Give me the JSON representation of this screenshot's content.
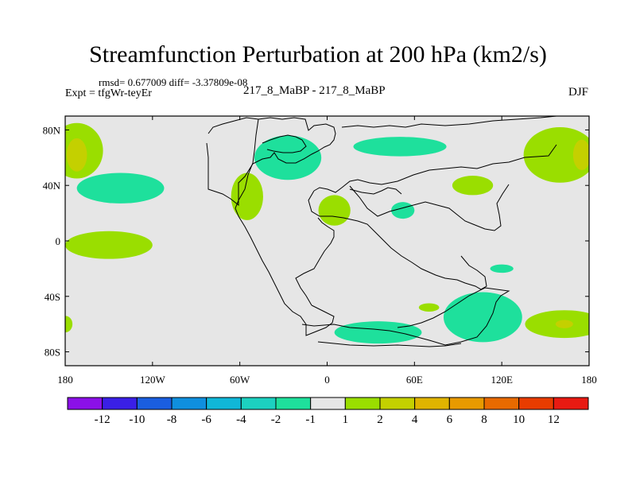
{
  "title": "Streamfunction Perturbation at 200 hPa (km2/s)",
  "subtitle_left_top": "rmsd= 0.677009 diff= -3.37809e-08",
  "subtitle_left": "Expt = tfgWr-teyEr",
  "subtitle_center": "217_8_MaBP - 217_8_MaBP",
  "subtitle_right": "DJF",
  "chart_data": {
    "type": "heatmap",
    "title": "Streamfunction Perturbation at 200 hPa (km2/s)",
    "map_projection": "cylindrical equidistant",
    "xlim": [
      -180,
      180
    ],
    "ylim": [
      -90,
      90
    ],
    "x_tick_values": [
      -180,
      -120,
      -60,
      0,
      60,
      120,
      180
    ],
    "x_tick_labels": [
      "180",
      "120W",
      "60W",
      "0",
      "60E",
      "120E",
      "180"
    ],
    "y_tick_values": [
      80,
      40,
      0,
      -40,
      -80
    ],
    "y_tick_labels": [
      "80N",
      "40N",
      "0",
      "40S",
      "80S"
    ],
    "background_value_range": [
      -1,
      1
    ],
    "features": [
      {
        "lon": -172,
        "lat": 65,
        "value": 1.5,
        "rx": 18,
        "ry": 20
      },
      {
        "lon": -172,
        "lat": 62,
        "value": 2.5,
        "rx": 7,
        "ry": 12
      },
      {
        "lon": -142,
        "lat": 38,
        "value": -1.5,
        "rx": 30,
        "ry": 11
      },
      {
        "lon": -150,
        "lat": -3,
        "value": 1.5,
        "rx": 30,
        "ry": 10
      },
      {
        "lon": -180,
        "lat": -60,
        "value": 1.5,
        "rx": 5,
        "ry": 6
      },
      {
        "lon": -55,
        "lat": 32,
        "value": 1.5,
        "rx": 11,
        "ry": 17
      },
      {
        "lon": -27,
        "lat": 60,
        "value": -1.5,
        "rx": 23,
        "ry": 16
      },
      {
        "lon": 5,
        "lat": 22,
        "value": 1.5,
        "rx": 11,
        "ry": 11
      },
      {
        "lon": 50,
        "lat": 68,
        "value": -1.5,
        "rx": 32,
        "ry": 7
      },
      {
        "lon": 52,
        "lat": 22,
        "value": -1.5,
        "rx": 8,
        "ry": 6
      },
      {
        "lon": 100,
        "lat": 40,
        "value": 1.5,
        "rx": 14,
        "ry": 7
      },
      {
        "lon": 160,
        "lat": 62,
        "value": 1.5,
        "rx": 25,
        "ry": 20
      },
      {
        "lon": 175,
        "lat": 62,
        "value": 2.5,
        "rx": 6,
        "ry": 11
      },
      {
        "lon": 120,
        "lat": -20,
        "value": -1.5,
        "rx": 8,
        "ry": 3
      },
      {
        "lon": 107,
        "lat": -55,
        "value": -1.5,
        "rx": 27,
        "ry": 18
      },
      {
        "lon": 70,
        "lat": -48,
        "value": 1.5,
        "rx": 7,
        "ry": 3
      },
      {
        "lon": 35,
        "lat": -66,
        "value": -1.5,
        "rx": 30,
        "ry": 8
      },
      {
        "lon": 163,
        "lat": -60,
        "value": 1.5,
        "rx": 27,
        "ry": 10
      },
      {
        "lon": 163,
        "lat": -60,
        "value": 2.5,
        "rx": 6,
        "ry": 3
      }
    ],
    "colorbar": {
      "labels": [
        "-12",
        "-10",
        "-8",
        "-6",
        "-4",
        "-2",
        "-1",
        "1",
        "2",
        "4",
        "6",
        "8",
        "10",
        "12"
      ],
      "colors": [
        "#8b10e8",
        "#3a1fe6",
        "#1a5ee0",
        "#0f8fde",
        "#10b7d8",
        "#1cd1c0",
        "#1ee09c",
        "#e6e6e6",
        "#9ade00",
        "#c4d000",
        "#e0b400",
        "#e89a00",
        "#e86a00",
        "#e83c00",
        "#e81a12"
      ]
    }
  }
}
